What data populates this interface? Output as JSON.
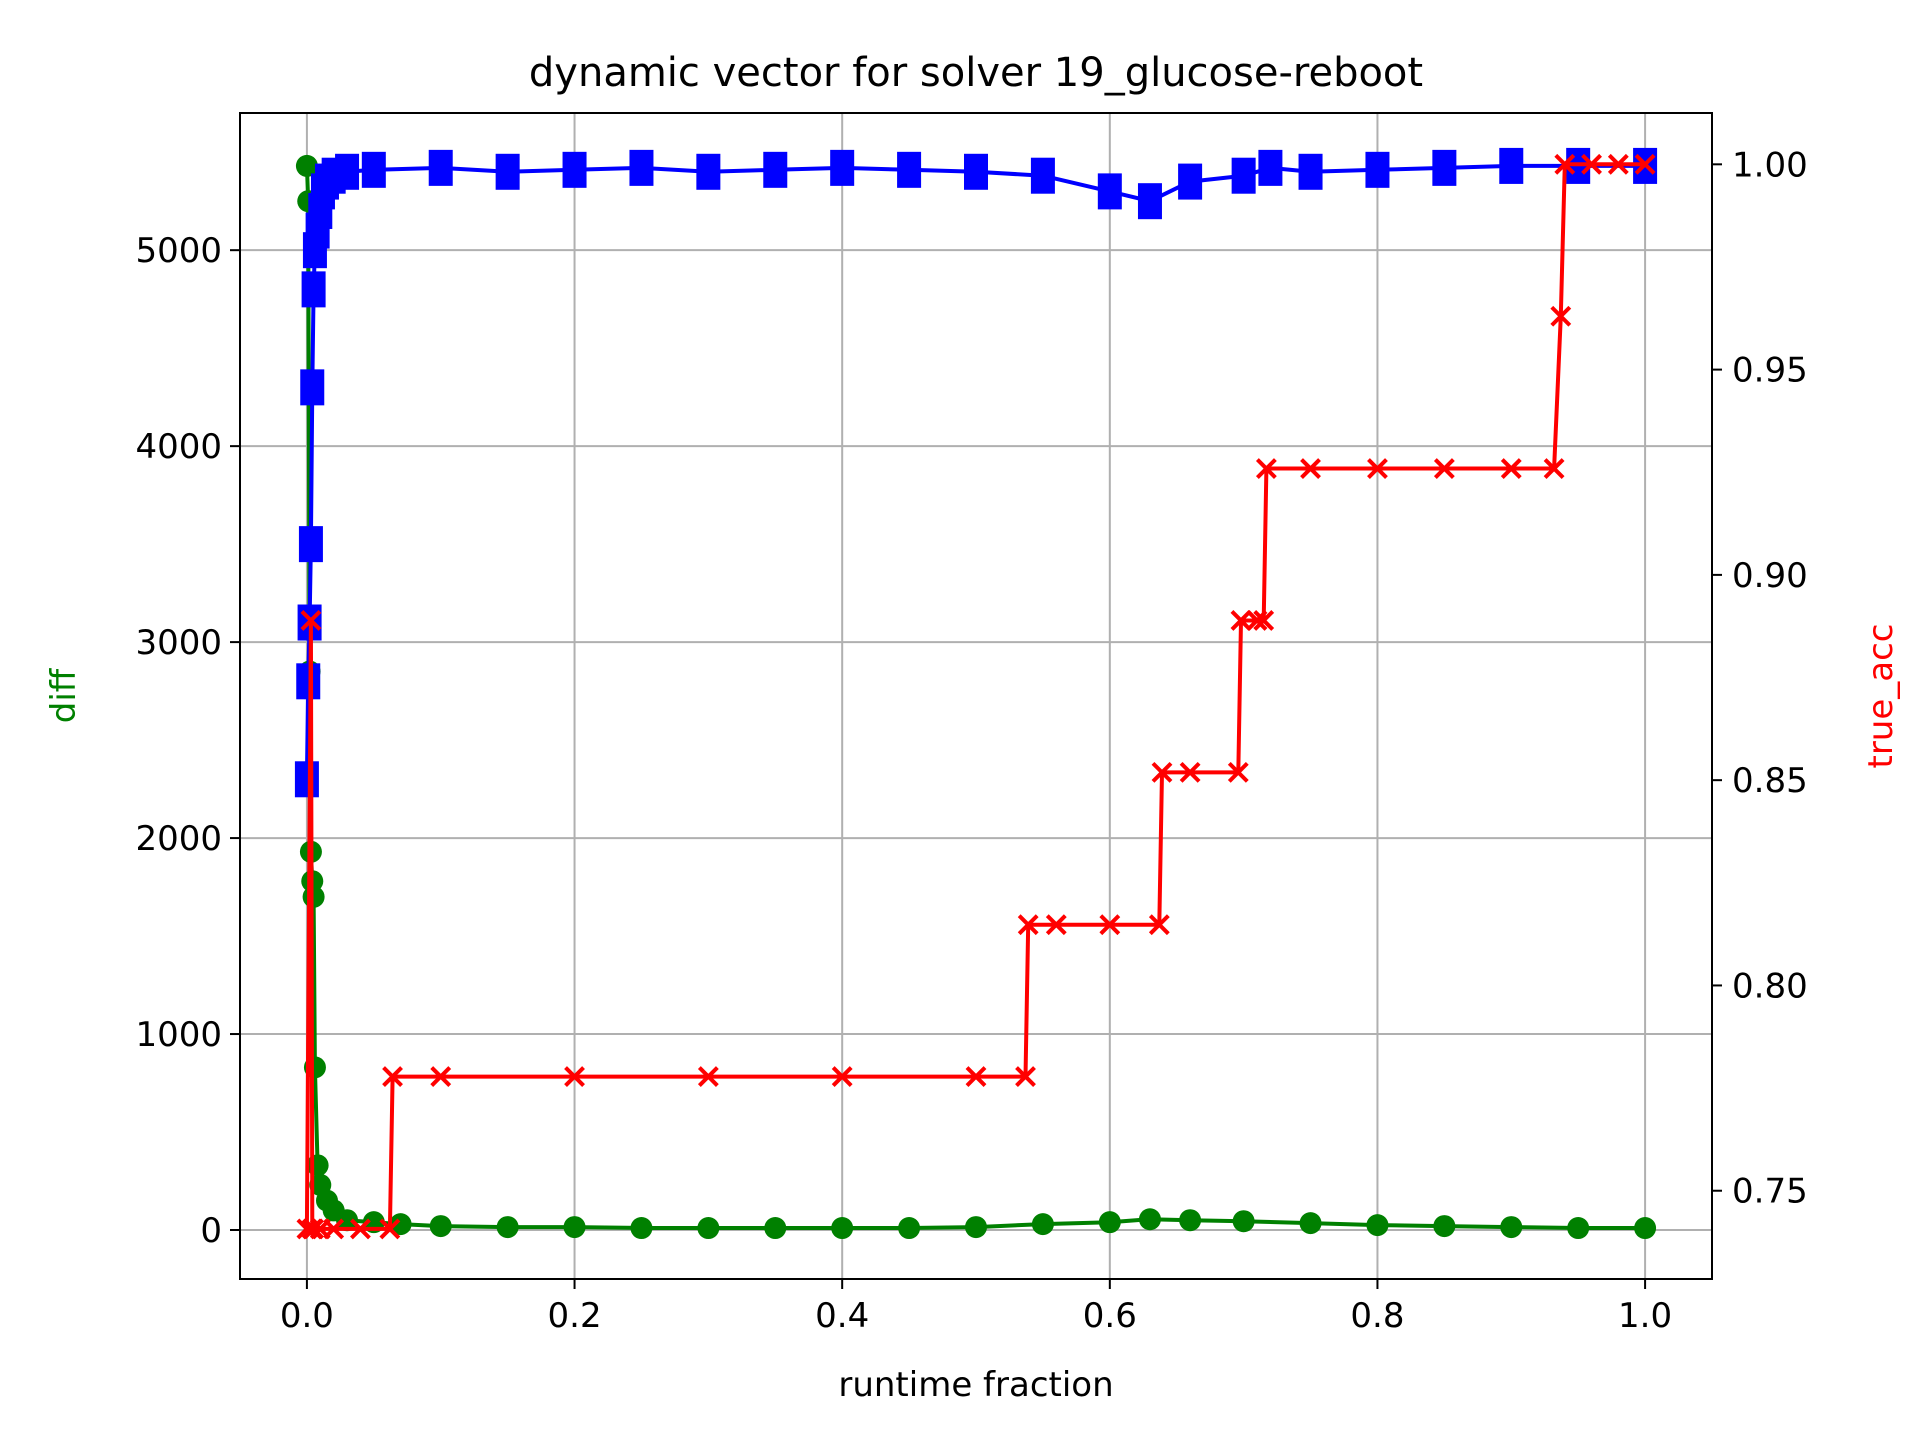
{
  "chart_data": {
    "type": "line",
    "title": "dynamic vector for solver 19_glucose-reboot",
    "xlabel": "runtime fraction",
    "ylabel_left": "diff",
    "ylabel_right": "true_acc",
    "grid": true,
    "xlim": [
      -0.05,
      1.05
    ],
    "ylim_left": [
      -250,
      5700
    ],
    "ylim_right": [
      0.7285,
      1.0125
    ],
    "xticks": [
      "0.0",
      "0.2",
      "0.4",
      "0.6",
      "0.8",
      "1.0"
    ],
    "xtick_values": [
      0.0,
      0.2,
      0.4,
      0.6,
      0.8,
      1.0
    ],
    "yticks_left": [
      "0",
      "1000",
      "2000",
      "3000",
      "4000",
      "5000"
    ],
    "ytick_values_left": [
      0,
      1000,
      2000,
      3000,
      4000,
      5000
    ],
    "yticks_right": [
      "0.75",
      "0.80",
      "0.85",
      "0.90",
      "0.95",
      "1.00"
    ],
    "ytick_values_right": [
      0.75,
      0.8,
      0.85,
      0.9,
      0.95,
      1.0
    ],
    "colors": {
      "diff": "#008000",
      "blue_series": "#0000ff",
      "true_acc": "#ff0000",
      "left_label": "#008000",
      "right_label": "#ff0000"
    },
    "series": [
      {
        "axis": "left",
        "color": "#008000",
        "marker": "circle",
        "x": [
          0.0,
          0.001,
          0.002,
          0.003,
          0.004,
          0.005,
          0.006,
          0.008,
          0.01,
          0.015,
          0.02,
          0.03,
          0.05,
          0.07,
          0.1,
          0.15,
          0.2,
          0.25,
          0.3,
          0.35,
          0.4,
          0.45,
          0.5,
          0.55,
          0.6,
          0.63,
          0.66,
          0.7,
          0.75,
          0.8,
          0.85,
          0.9,
          0.95,
          1.0
        ],
        "y": [
          5430,
          5250,
          2850,
          1930,
          1780,
          1700,
          830,
          330,
          230,
          150,
          100,
          50,
          40,
          30,
          20,
          15,
          15,
          10,
          10,
          10,
          10,
          10,
          15,
          30,
          40,
          55,
          50,
          45,
          35,
          25,
          20,
          15,
          10,
          10
        ]
      },
      {
        "axis": "left",
        "color": "#0000ff",
        "marker": "square",
        "x": [
          0.0,
          0.001,
          0.002,
          0.003,
          0.004,
          0.005,
          0.006,
          0.008,
          0.01,
          0.012,
          0.015,
          0.02,
          0.03,
          0.05,
          0.1,
          0.15,
          0.2,
          0.25,
          0.3,
          0.35,
          0.4,
          0.45,
          0.5,
          0.55,
          0.6,
          0.63,
          0.66,
          0.7,
          0.72,
          0.75,
          0.8,
          0.85,
          0.9,
          0.95,
          1.0
        ],
        "y": [
          2300,
          2800,
          3100,
          3500,
          4300,
          4800,
          5000,
          5100,
          5200,
          5300,
          5350,
          5380,
          5400,
          5410,
          5420,
          5400,
          5410,
          5420,
          5400,
          5410,
          5420,
          5410,
          5400,
          5380,
          5300,
          5250,
          5350,
          5380,
          5420,
          5400,
          5410,
          5420,
          5430,
          5430,
          5430
        ]
      },
      {
        "axis": "right",
        "color": "#ff0000",
        "marker": "x",
        "x": [
          0.0,
          0.003,
          0.004,
          0.005,
          0.01,
          0.02,
          0.04,
          0.062,
          0.064,
          0.1,
          0.2,
          0.3,
          0.4,
          0.5,
          0.537,
          0.539,
          0.56,
          0.6,
          0.637,
          0.639,
          0.66,
          0.696,
          0.698,
          0.71,
          0.715,
          0.717,
          0.75,
          0.8,
          0.85,
          0.9,
          0.932,
          0.937,
          0.94,
          0.96,
          0.98,
          1.0
        ],
        "y": [
          0.7407,
          0.8889,
          0.7407,
          0.7407,
          0.7407,
          0.7407,
          0.7407,
          0.7407,
          0.7778,
          0.7778,
          0.7778,
          0.7778,
          0.7778,
          0.7778,
          0.7778,
          0.8148,
          0.8148,
          0.8148,
          0.8148,
          0.8519,
          0.8519,
          0.8519,
          0.8889,
          0.8889,
          0.8889,
          0.9259,
          0.9259,
          0.9259,
          0.9259,
          0.9259,
          0.9259,
          0.963,
          1.0,
          1.0,
          1.0,
          1.0
        ]
      }
    ]
  }
}
